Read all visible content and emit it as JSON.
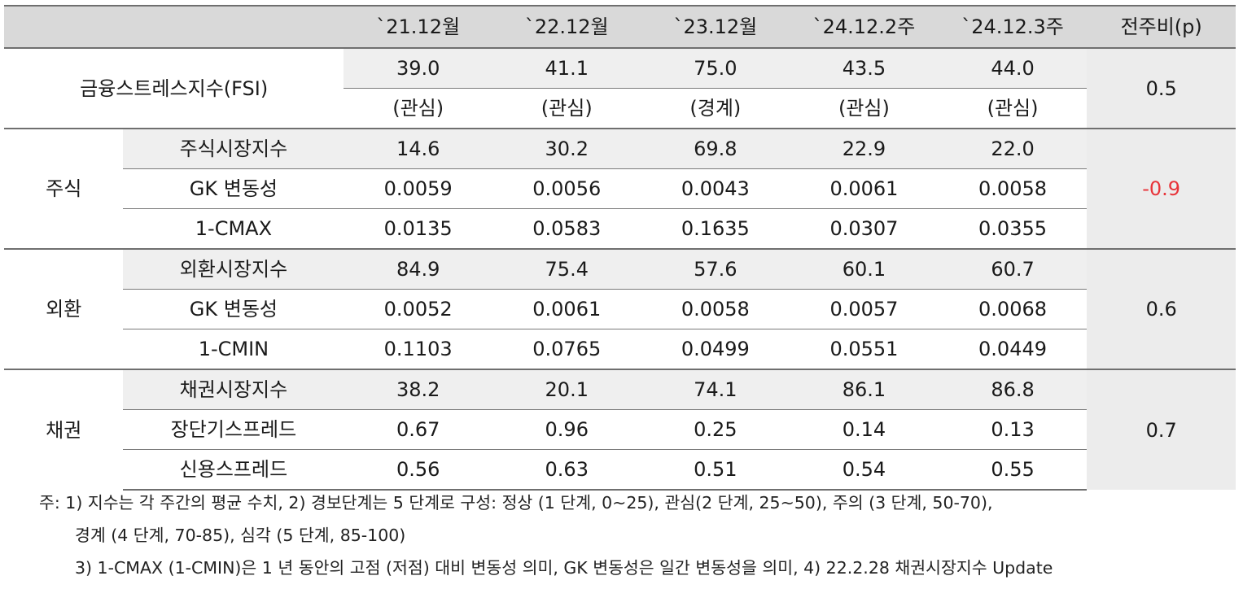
{
  "header": {
    "blank": "",
    "periods": [
      "`21.12월",
      "`22.12월",
      "`23.12월",
      "`24.12.2주",
      "`24.12.3주"
    ],
    "change": "전주비(p)"
  },
  "fsi": {
    "label": "금융스트레스지수(FSI)",
    "values": [
      "39.0",
      "41.1",
      "75.0",
      "43.5",
      "44.0"
    ],
    "levels": [
      "(관심)",
      "(관심)",
      "(경계)",
      "(관심)",
      "(관심)"
    ],
    "change": "0.5"
  },
  "groups": [
    {
      "name": "주식",
      "change": "-0.9",
      "rows": [
        {
          "label": "주식시장지수",
          "values": [
            "14.6",
            "30.2",
            "69.8",
            "22.9",
            "22.0"
          ]
        },
        {
          "label": "GK 변동성",
          "values": [
            "0.0059",
            "0.0056",
            "0.0043",
            "0.0061",
            "0.0058"
          ]
        },
        {
          "label": "1-CMAX",
          "values": [
            "0.0135",
            "0.0583",
            "0.1635",
            "0.0307",
            "0.0355"
          ]
        }
      ]
    },
    {
      "name": "외환",
      "change": "0.6",
      "rows": [
        {
          "label": "외환시장지수",
          "values": [
            "84.9",
            "75.4",
            "57.6",
            "60.1",
            "60.7"
          ]
        },
        {
          "label": "GK 변동성",
          "values": [
            "0.0052",
            "0.0061",
            "0.0058",
            "0.0057",
            "0.0068"
          ]
        },
        {
          "label": "1-CMIN",
          "values": [
            "0.1103",
            "0.0765",
            "0.0499",
            "0.0551",
            "0.0449"
          ]
        }
      ]
    },
    {
      "name": "채권",
      "change": "0.7",
      "rows": [
        {
          "label": "채권시장지수",
          "values": [
            "38.2",
            "20.1",
            "74.1",
            "86.1",
            "86.8"
          ]
        },
        {
          "label": "장단기스프레드",
          "values": [
            "0.67",
            "0.96",
            "0.25",
            "0.14",
            "0.13"
          ]
        },
        {
          "label": "신용스프레드",
          "values": [
            "0.56",
            "0.63",
            "0.51",
            "0.54",
            "0.55"
          ]
        }
      ]
    }
  ],
  "notes": [
    "주: 1) 지수는 각 주간의 평균 수치, 2) 경보단계는 5 단계로 구성: 정상 (1 단계, 0~25), 관심(2 단계, 25~50), 주의 (3 단계, 50-70),",
    "경계 (4 단계, 70-85), 심각 (5 단계, 85-100)",
    "3) 1-CMAX (1-CMIN)은 1 년 동안의 고점 (저점) 대비 변동성 의미, GK 변동성은 일간 변동성을 의미, 4) 22.2.28 채권시장지수 Update"
  ],
  "colors": {
    "header_bg": "#d9d9d9",
    "index_row_bg": "#efefef",
    "negative": "#e8343a"
  }
}
